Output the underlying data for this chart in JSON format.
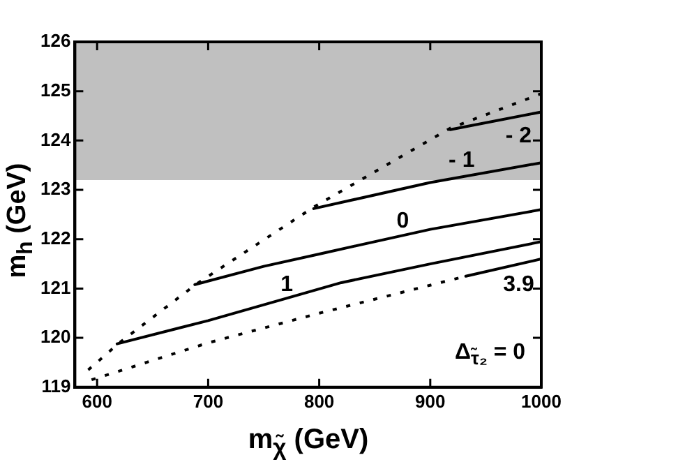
{
  "chart_data": {
    "type": "line",
    "xlabel": "m$_{χ̃}$ (GeV)",
    "ylabel": "m$_{h}$ (GeV)",
    "xlim": [
      580,
      1000
    ],
    "xticks": [
      600,
      700,
      800,
      900,
      1000
    ],
    "ylim": [
      119,
      126
    ],
    "yticks": [
      119,
      120,
      121,
      122,
      123,
      124,
      125,
      126
    ],
    "grid": false,
    "legend": "right",
    "marker": "none",
    "bands": [
      {
        "axis": "y",
        "from": 123.2,
        "to": 126,
        "color": "#c0c0c0"
      }
    ],
    "series": [
      {
        "name": "- 2",
        "color": "#000000",
        "line_style": "solid",
        "x": [
          918,
          1000
        ],
        "values": [
          124.22,
          124.58
        ]
      },
      {
        "name": "- 1",
        "color": "#000000",
        "line_style": "solid",
        "x": [
          795,
          900,
          1000
        ],
        "values": [
          122.62,
          123.15,
          123.55
        ]
      },
      {
        "name": "0",
        "color": "#000000",
        "line_style": "solid",
        "x": [
          688,
          750,
          800,
          900,
          1000
        ],
        "values": [
          121.08,
          121.45,
          121.7,
          122.2,
          122.6
        ]
      },
      {
        "name": "1",
        "color": "#000000",
        "line_style": "solid",
        "x": [
          618,
          700,
          770,
          820,
          900,
          1000
        ],
        "values": [
          119.88,
          120.35,
          120.8,
          121.12,
          121.5,
          121.95
        ]
      },
      {
        "name": "3.9",
        "color": "#000000",
        "line_style": "solid",
        "x": [
          932,
          1000
        ],
        "values": [
          121.25,
          121.6
        ]
      },
      {
        "color": "#000000",
        "line_style": "dotted",
        "x": [
          592,
          620,
          690,
          795,
          918,
          1000
        ],
        "values": [
          119.35,
          119.9,
          121.1,
          122.65,
          124.25,
          124.95
        ]
      },
      {
        "color": "#000000",
        "line_style": "dotted",
        "x": [
          595,
          700,
          800,
          932
        ],
        "values": [
          119.15,
          119.9,
          120.5,
          121.25
        ]
      }
    ],
    "annotations": [
      "Δ$_{τ̃₂}$ = 0"
    ]
  }
}
